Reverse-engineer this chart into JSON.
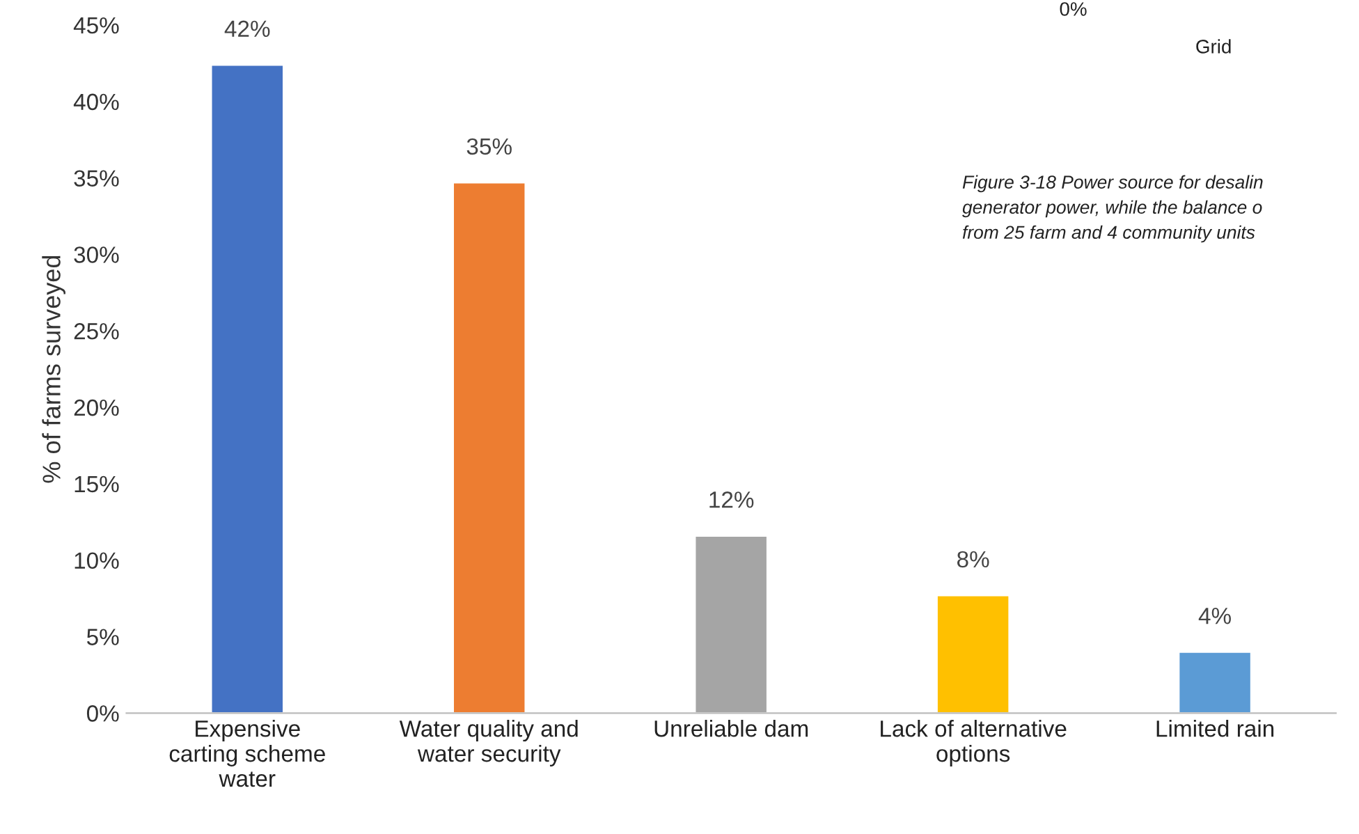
{
  "chart_data": {
    "type": "bar",
    "categories": [
      "Expensive\ncarting scheme\nwater",
      "Water quality and\nwater security",
      "Unreliable dam",
      "Lack of alternative\noptions",
      "Limited rain"
    ],
    "values": [
      42.4,
      34.7,
      11.6,
      7.7,
      4.0
    ],
    "colors": [
      "#4472c4",
      "#ed7d31",
      "#a5a5a5",
      "#ffc000",
      "#5b9bd5"
    ],
    "value_labels": [
      "42%",
      "35%",
      "12%",
      "8%",
      "4%"
    ],
    "ylabel": "% of farms surveyed",
    "ylim": [
      0,
      45
    ],
    "yticks": [
      {
        "value": 0,
        "label": "0%"
      },
      {
        "value": 5,
        "label": "5%"
      },
      {
        "value": 10,
        "label": "10%"
      },
      {
        "value": 15,
        "label": "15%"
      },
      {
        "value": 20,
        "label": "20%"
      },
      {
        "value": 25,
        "label": "25%"
      },
      {
        "value": 30,
        "label": "30%"
      },
      {
        "value": 35,
        "label": "35%"
      },
      {
        "value": 40,
        "label": "40%"
      },
      {
        "value": 45,
        "label": "45%"
      }
    ],
    "grid": false,
    "annotations": [
      "Figure 3-18 Power source for desalin\ngenerator power, while the balance o\nfrom 25 farm and 4 community units",
      "0%",
      "Grid"
    ]
  }
}
